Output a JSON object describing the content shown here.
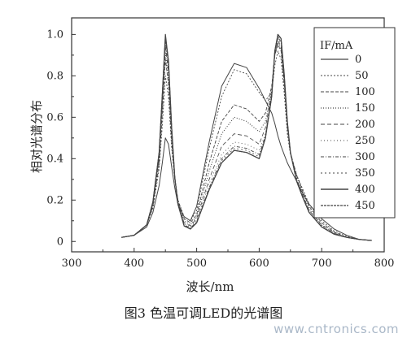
{
  "chart_data": {
    "type": "line",
    "xlabel": "波长/nm",
    "ylabel": "相对光谱分布",
    "xlim": [
      300,
      800
    ],
    "ylim": [
      -0.05,
      1.08
    ],
    "x_ticks": [
      300,
      400,
      500,
      600,
      700,
      800
    ],
    "y_ticks": [
      0,
      0.2,
      0.4,
      0.6,
      0.8,
      1.0
    ],
    "y_tick_labels": [
      "0",
      "0.2",
      "0.4",
      "0.6",
      "0.8",
      "1.0"
    ],
    "legend_title": "IF/mA",
    "legend_position": "top-right",
    "x": [
      380,
      400,
      420,
      430,
      440,
      445,
      450,
      455,
      460,
      465,
      470,
      480,
      490,
      500,
      520,
      540,
      560,
      580,
      600,
      610,
      620,
      625,
      630,
      635,
      640,
      645,
      650,
      660,
      670,
      680,
      700,
      720,
      740,
      760,
      780
    ],
    "series": [
      {
        "name": "0",
        "values": [
          0.02,
          0.03,
          0.07,
          0.14,
          0.27,
          0.38,
          0.5,
          0.47,
          0.36,
          0.26,
          0.18,
          0.12,
          0.1,
          0.17,
          0.48,
          0.75,
          0.86,
          0.84,
          0.74,
          0.68,
          0.62,
          0.57,
          0.51,
          0.46,
          0.42,
          0.38,
          0.35,
          0.29,
          0.23,
          0.18,
          0.11,
          0.06,
          0.03,
          0.01,
          0.005
        ]
      },
      {
        "name": "50",
        "values": [
          0.02,
          0.03,
          0.08,
          0.16,
          0.35,
          0.56,
          0.8,
          0.7,
          0.45,
          0.3,
          0.2,
          0.12,
          0.1,
          0.15,
          0.45,
          0.7,
          0.83,
          0.81,
          0.72,
          0.68,
          0.72,
          0.85,
          0.92,
          0.88,
          0.72,
          0.52,
          0.42,
          0.32,
          0.25,
          0.18,
          0.1,
          0.05,
          0.025,
          0.01,
          0.005
        ]
      },
      {
        "name": "100",
        "values": [
          0.02,
          0.03,
          0.08,
          0.17,
          0.38,
          0.62,
          0.88,
          0.76,
          0.48,
          0.31,
          0.2,
          0.11,
          0.09,
          0.13,
          0.38,
          0.58,
          0.66,
          0.64,
          0.58,
          0.62,
          0.75,
          0.9,
          0.95,
          0.92,
          0.76,
          0.55,
          0.43,
          0.32,
          0.24,
          0.17,
          0.09,
          0.045,
          0.02,
          0.01,
          0.005
        ]
      },
      {
        "name": "150",
        "values": [
          0.02,
          0.03,
          0.08,
          0.17,
          0.39,
          0.64,
          0.91,
          0.79,
          0.5,
          0.31,
          0.19,
          0.1,
          0.08,
          0.12,
          0.34,
          0.52,
          0.6,
          0.58,
          0.53,
          0.58,
          0.73,
          0.9,
          0.96,
          0.93,
          0.77,
          0.56,
          0.43,
          0.31,
          0.23,
          0.16,
          0.08,
          0.04,
          0.02,
          0.01,
          0.005
        ]
      },
      {
        "name": "200",
        "values": [
          0.02,
          0.03,
          0.08,
          0.18,
          0.4,
          0.66,
          0.94,
          0.82,
          0.52,
          0.31,
          0.19,
          0.09,
          0.075,
          0.11,
          0.3,
          0.46,
          0.52,
          0.51,
          0.47,
          0.55,
          0.72,
          0.9,
          0.97,
          0.94,
          0.78,
          0.56,
          0.43,
          0.3,
          0.22,
          0.15,
          0.08,
          0.04,
          0.02,
          0.01,
          0.005
        ]
      },
      {
        "name": "250",
        "values": [
          0.02,
          0.03,
          0.08,
          0.18,
          0.41,
          0.68,
          0.96,
          0.84,
          0.53,
          0.31,
          0.18,
          0.085,
          0.07,
          0.1,
          0.28,
          0.42,
          0.48,
          0.47,
          0.44,
          0.52,
          0.71,
          0.9,
          0.98,
          0.95,
          0.79,
          0.57,
          0.43,
          0.29,
          0.21,
          0.15,
          0.075,
          0.035,
          0.02,
          0.01,
          0.005
        ]
      },
      {
        "name": "300",
        "values": [
          0.02,
          0.03,
          0.08,
          0.18,
          0.42,
          0.69,
          0.97,
          0.85,
          0.54,
          0.31,
          0.18,
          0.08,
          0.065,
          0.095,
          0.26,
          0.4,
          0.46,
          0.45,
          0.42,
          0.51,
          0.71,
          0.91,
          0.99,
          0.96,
          0.8,
          0.57,
          0.43,
          0.29,
          0.21,
          0.14,
          0.07,
          0.035,
          0.02,
          0.01,
          0.005
        ]
      },
      {
        "name": "350",
        "values": [
          0.02,
          0.03,
          0.08,
          0.19,
          0.42,
          0.7,
          0.98,
          0.86,
          0.54,
          0.31,
          0.18,
          0.08,
          0.062,
          0.09,
          0.25,
          0.39,
          0.45,
          0.44,
          0.41,
          0.5,
          0.7,
          0.91,
          0.99,
          0.97,
          0.8,
          0.57,
          0.43,
          0.29,
          0.21,
          0.14,
          0.07,
          0.035,
          0.02,
          0.01,
          0.005
        ]
      },
      {
        "name": "400",
        "values": [
          0.02,
          0.03,
          0.08,
          0.19,
          0.43,
          0.71,
          1.0,
          0.87,
          0.55,
          0.31,
          0.18,
          0.075,
          0.06,
          0.09,
          0.25,
          0.38,
          0.44,
          0.43,
          0.4,
          0.5,
          0.7,
          0.92,
          1.0,
          0.98,
          0.81,
          0.58,
          0.43,
          0.29,
          0.21,
          0.14,
          0.07,
          0.035,
          0.02,
          0.01,
          0.005
        ]
      },
      {
        "name": "450",
        "values": [
          0.02,
          0.03,
          0.08,
          0.19,
          0.43,
          0.71,
          0.99,
          0.87,
          0.55,
          0.31,
          0.18,
          0.075,
          0.06,
          0.09,
          0.25,
          0.38,
          0.44,
          0.43,
          0.4,
          0.5,
          0.7,
          0.92,
          1.0,
          0.98,
          0.81,
          0.58,
          0.43,
          0.29,
          0.21,
          0.14,
          0.07,
          0.035,
          0.02,
          0.01,
          0.005
        ]
      }
    ]
  },
  "caption": "图3  色温可调LED的光谱图",
  "watermark": "www.cntronics.com",
  "styles": {
    "axis_color": "#333333",
    "curve_color": "#444444"
  }
}
